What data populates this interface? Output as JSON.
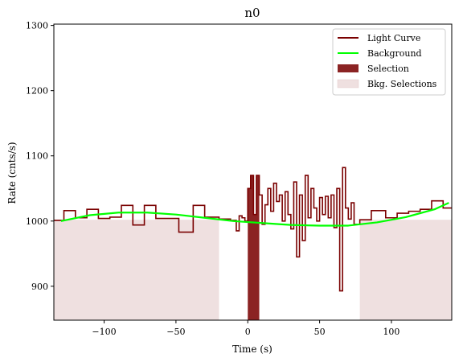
{
  "chart_data": {
    "type": "line",
    "title": "n0",
    "xlabel": "Time (s)",
    "ylabel": "Rate (cnts/s)",
    "xlim": [
      -135,
      142
    ],
    "ylim": [
      848,
      1302
    ],
    "x_ticks": [
      -100,
      -50,
      0,
      50,
      100
    ],
    "x_tick_labels": [
      "−100",
      "−50",
      "0",
      "50",
      "100"
    ],
    "y_ticks": [
      900,
      1000,
      1100,
      1200,
      1300
    ],
    "y_tick_labels": [
      "900",
      "1000",
      "1100",
      "1200",
      "1300"
    ],
    "grid": false,
    "legend_position": "top-right",
    "legend": {
      "light_curve": "Light Curve",
      "background": "Background",
      "selection": "Selection",
      "bkg_selections": "Bkg. Selections"
    },
    "colors": {
      "light_curve": "#7a0000",
      "background": "#00ff00",
      "selection": "#8b2323",
      "bkg_selections": "#efe0e0"
    },
    "bkg_selection_ranges": [
      [
        -135,
        -20
      ],
      [
        78,
        142
      ]
    ],
    "selection_range": [
      0,
      8
    ],
    "light_curve_steps": [
      [
        -135,
        1001
      ],
      [
        -128,
        1016
      ],
      [
        -120,
        1005
      ],
      [
        -112,
        1018
      ],
      [
        -104,
        1004
      ],
      [
        -96,
        1006
      ],
      [
        -88,
        1024
      ],
      [
        -80,
        994
      ],
      [
        -72,
        1024
      ],
      [
        -64,
        1004
      ],
      [
        -48,
        983
      ],
      [
        -38,
        1024
      ],
      [
        -30,
        1006
      ],
      [
        -20,
        1003
      ],
      [
        -12,
        1001
      ],
      [
        -8,
        985
      ],
      [
        -6,
        1008
      ],
      [
        -4,
        1005
      ],
      [
        -2,
        1000
      ],
      [
        0,
        1050
      ],
      [
        2,
        1070
      ],
      [
        4,
        1010
      ],
      [
        6,
        1070
      ],
      [
        8,
        1040
      ],
      [
        10,
        995
      ],
      [
        12,
        1025
      ],
      [
        14,
        1050
      ],
      [
        16,
        1015
      ],
      [
        18,
        1058
      ],
      [
        20,
        1030
      ],
      [
        22,
        1040
      ],
      [
        24,
        1000
      ],
      [
        26,
        1045
      ],
      [
        28,
        1010
      ],
      [
        30,
        988
      ],
      [
        32,
        1060
      ],
      [
        34,
        945
      ],
      [
        36,
        1040
      ],
      [
        38,
        970
      ],
      [
        40,
        1070
      ],
      [
        42,
        1005
      ],
      [
        44,
        1050
      ],
      [
        46,
        1020
      ],
      [
        48,
        1000
      ],
      [
        50,
        1036
      ],
      [
        52,
        1010
      ],
      [
        54,
        1038
      ],
      [
        56,
        1005
      ],
      [
        58,
        1040
      ],
      [
        60,
        990
      ],
      [
        62,
        1050
      ],
      [
        64,
        893
      ],
      [
        66,
        1082
      ],
      [
        68,
        1020
      ],
      [
        70,
        1003
      ],
      [
        72,
        1028
      ],
      [
        74,
        995
      ],
      [
        78,
        1002
      ],
      [
        86,
        1016
      ],
      [
        96,
        1005
      ],
      [
        104,
        1012
      ],
      [
        112,
        1015
      ],
      [
        120,
        1018
      ],
      [
        128,
        1031
      ],
      [
        136,
        1020
      ],
      [
        142,
        1020
      ]
    ],
    "background_curve": {
      "x": [
        -130,
        -110,
        -90,
        -70,
        -50,
        -30,
        -10,
        10,
        30,
        50,
        70,
        90,
        110,
        130,
        140
      ],
      "y": [
        1000,
        1009,
        1013,
        1013,
        1010,
        1005,
        1000,
        997,
        994,
        993,
        993,
        998,
        1006,
        1018,
        1028
      ]
    }
  }
}
